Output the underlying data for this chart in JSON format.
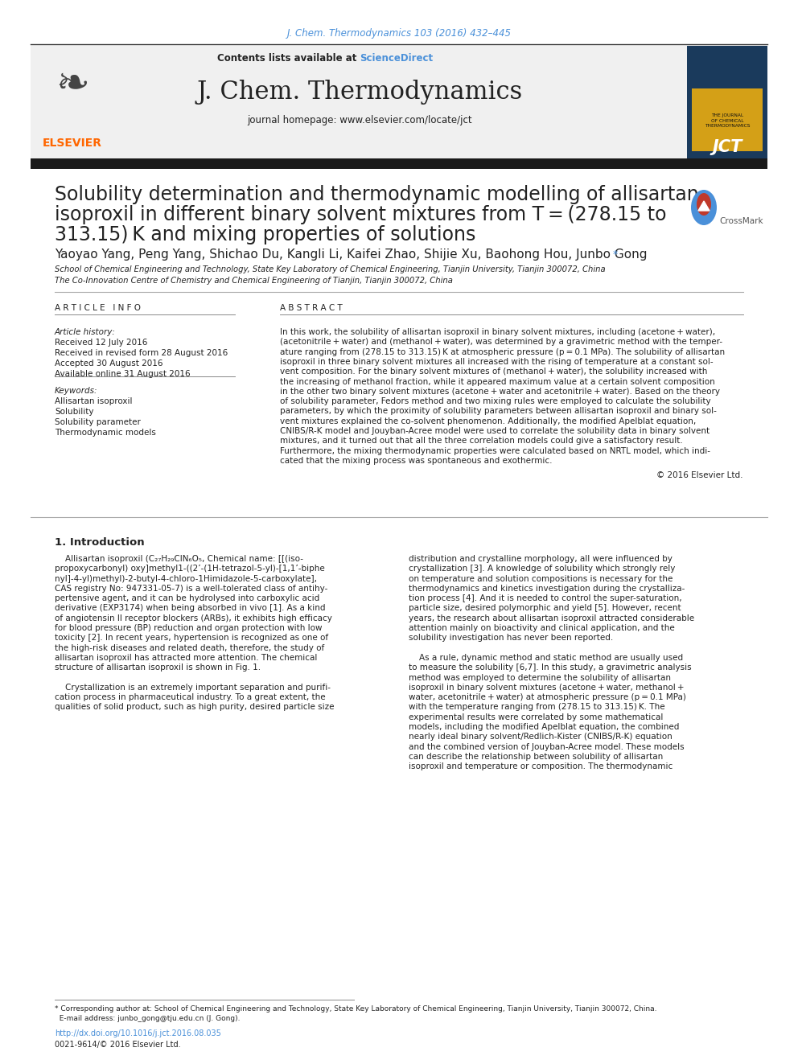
{
  "journal_ref": "J. Chem. Thermodynamics 103 (2016) 432–445",
  "contents_line": "Contents lists available at ",
  "sciencedirect": "ScienceDirect",
  "journal_name": "J. Chem. Thermodynamics",
  "journal_homepage": "journal homepage: www.elsevier.com/locate/jct",
  "title_line1": "Solubility determination and thermodynamic modelling of allisartan",
  "title_line2": "isoproxil in different binary solvent mixtures from T = (278.15 to",
  "title_line3": "313.15) K and mixing properties of solutions",
  "authors": "Yaoyao Yang, Peng Yang, Shichao Du, Kangli Li, Kaifei Zhao, Shijie Xu, Baohong Hou, Junbo Gong",
  "author_star": " *",
  "affil1": "School of Chemical Engineering and Technology, State Key Laboratory of Chemical Engineering, Tianjin University, Tianjin 300072, China",
  "affil2": "The Co-Innovation Centre of Chemistry and Chemical Engineering of Tianjin, Tianjin 300072, China",
  "article_info_header": "A R T I C L E   I N F O",
  "article_history_header": "Article history:",
  "article_history": [
    "Received 12 July 2016",
    "Received in revised form 28 August 2016",
    "Accepted 30 August 2016",
    "Available online 31 August 2016"
  ],
  "keywords_header": "Keywords:",
  "keywords": [
    "Allisartan isoproxil",
    "Solubility",
    "Solubility parameter",
    "Thermodynamic models"
  ],
  "abstract_header": "A B S T R A C T",
  "copyright": "© 2016 Elsevier Ltd.",
  "section1_header": "1. Introduction",
  "footnote_line1": "* Corresponding author at: School of Chemical Engineering and Technology, State Key Laboratory of Chemical Engineering, Tianjin University, Tianjin 300072, China.",
  "footnote_line2": "  E-mail address: junbo_gong@tju.edu.cn (J. Gong).",
  "doi_text": "http://dx.doi.org/10.1016/j.jct.2016.08.035",
  "issn_text": "0021-9614/© 2016 Elsevier Ltd.",
  "bg_color": "#ffffff",
  "header_bg": "#f0f0f0",
  "link_color": "#4a90d9",
  "dark_gray": "#222222",
  "medium_gray": "#555555",
  "light_gray": "#888888",
  "elsevier_orange": "#ff6600",
  "header_bar_color": "#1a1a1a",
  "abstract_lines": [
    "In this work, the solubility of allisartan isoproxil in binary solvent mixtures, including (acetone + water),",
    "(acetonitrile + water) and (methanol + water), was determined by a gravimetric method with the temper-",
    "ature ranging from (278.15 to 313.15) K at atmospheric pressure (p = 0.1 MPa). The solubility of allisartan",
    "isoproxil in three binary solvent mixtures all increased with the rising of temperature at a constant sol-",
    "vent composition. For the binary solvent mixtures of (methanol + water), the solubility increased with",
    "the increasing of methanol fraction, while it appeared maximum value at a certain solvent composition",
    "in the other two binary solvent mixtures (acetone + water and acetonitrile + water). Based on the theory",
    "of solubility parameter, Fedors method and two mixing rules were employed to calculate the solubility",
    "parameters, by which the proximity of solubility parameters between allisartan isoproxil and binary sol-",
    "vent mixtures explained the co-solvent phenomenon. Additionally, the modified Apelblat equation,",
    "CNIBS/R-K model and Jouyban-Acree model were used to correlate the solubility data in binary solvent",
    "mixtures, and it turned out that all the three correlation models could give a satisfactory result.",
    "Furthermore, the mixing thermodynamic properties were calculated based on NRTL model, which indi-",
    "cated that the mixing process was spontaneous and exothermic."
  ],
  "intro_left_lines": [
    "    Allisartan isoproxil (C₂₇H₂₉ClN₆O₅, Chemical name: [[(iso-",
    "propoxycarbonyl) oxy]methyl1-((2’-(1H-tetrazol-5-yl)-[1,1’-biphe",
    "nyl]-4-yl)methyl)-2-butyl-4-chloro-1Himidazole-5-carboxylate],",
    "CAS registry No: 947331-05-7) is a well-tolerated class of antihy-",
    "pertensive agent, and it can be hydrolysed into carboxylic acid",
    "derivative (EXP3174) when being absorbed in vivo [1]. As a kind",
    "of angiotensin II receptor blockers (ARBs), it exhibits high efficacy",
    "for blood pressure (BP) reduction and organ protection with low",
    "toxicity [2]. In recent years, hypertension is recognized as one of",
    "the high-risk diseases and related death, therefore, the study of",
    "allisartan isoproxil has attracted more attention. The chemical",
    "structure of allisartan isoproxil is shown in Fig. 1.",
    "",
    "    Crystallization is an extremely important separation and purifi-",
    "cation process in pharmaceutical industry. To a great extent, the",
    "qualities of solid product, such as high purity, desired particle size"
  ],
  "intro_right_lines": [
    "distribution and crystalline morphology, all were influenced by",
    "crystallization [3]. A knowledge of solubility which strongly rely",
    "on temperature and solution compositions is necessary for the",
    "thermodynamics and kinetics investigation during the crystalliza-",
    "tion process [4]. And it is needed to control the super-saturation,",
    "particle size, desired polymorphic and yield [5]. However, recent",
    "years, the research about allisartan isoproxil attracted considerable",
    "attention mainly on bioactivity and clinical application, and the",
    "solubility investigation has never been reported.",
    "",
    "    As a rule, dynamic method and static method are usually used",
    "to measure the solubility [6,7]. In this study, a gravimetric analysis",
    "method was employed to determine the solubility of allisartan",
    "isoproxil in binary solvent mixtures (acetone + water, methanol +",
    "water, acetonitrile + water) at atmospheric pressure (p = 0.1 MPa)",
    "with the temperature ranging from (278.15 to 313.15) K. The",
    "experimental results were correlated by some mathematical",
    "models, including the modified Apelblat equation, the combined",
    "nearly ideal binary solvent/Redlich-Kister (CNIBS/R-K) equation",
    "and the combined version of Jouyban-Acree model. These models",
    "can describe the relationship between solubility of allisartan",
    "isoproxil and temperature or composition. The thermodynamic"
  ]
}
